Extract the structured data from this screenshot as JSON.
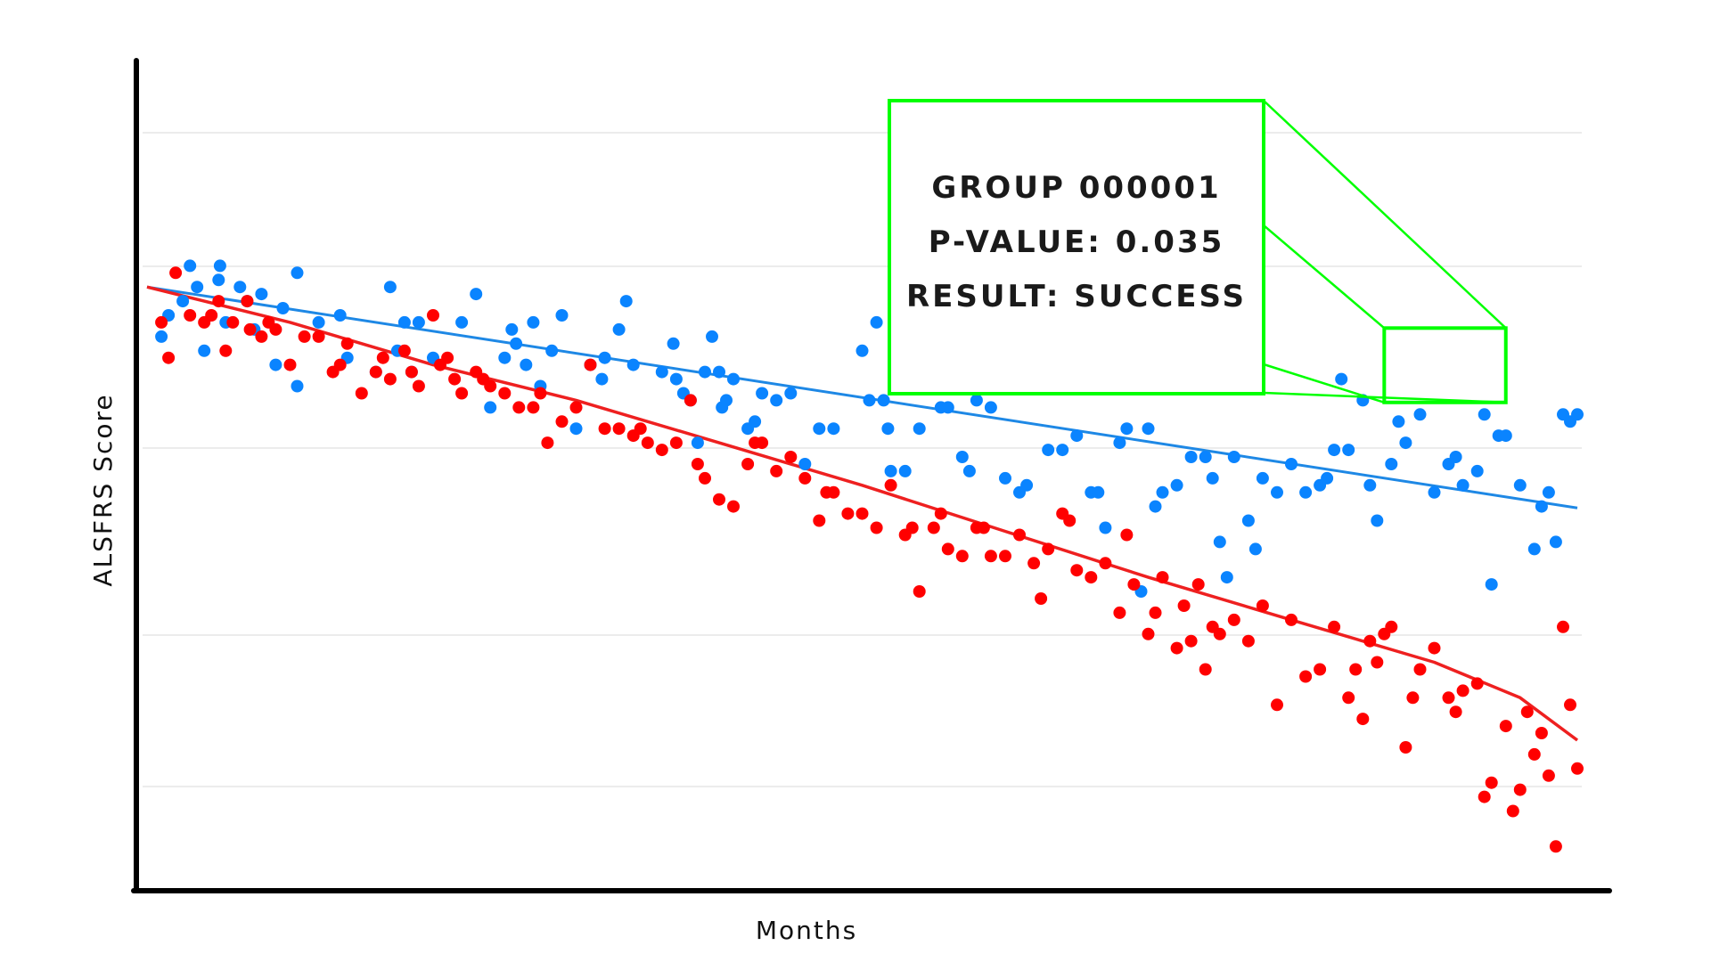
{
  "chart_data": {
    "type": "scatter",
    "title": "",
    "xlabel": "Months",
    "ylabel": "ALSFRS Score",
    "tick_labels_visible": false,
    "grid": "horizontal",
    "xlim": [
      0,
      100
    ],
    "ylim": [
      0,
      100
    ],
    "series": [
      {
        "color": "#0a84ff",
        "trend": "linear",
        "trend_color": "#1e88e5",
        "trend_start": [
          0,
          84.0
        ],
        "trend_end": [
          100,
          52.8
        ],
        "points": [
          [
            1,
            77
          ],
          [
            1.5,
            80
          ],
          [
            2.5,
            82
          ],
          [
            3,
            87
          ],
          [
            3.5,
            84
          ],
          [
            4,
            75
          ],
          [
            5,
            85
          ],
          [
            5.1,
            87
          ],
          [
            5.5,
            79
          ],
          [
            6.5,
            84
          ],
          [
            7,
            82
          ],
          [
            7.5,
            78
          ],
          [
            8,
            83
          ],
          [
            9,
            73
          ],
          [
            9.5,
            81
          ],
          [
            10.5,
            86
          ],
          [
            10.5,
            70
          ],
          [
            12,
            79
          ],
          [
            13.5,
            80
          ],
          [
            14,
            74
          ],
          [
            16,
            72
          ],
          [
            17,
            84
          ],
          [
            17.5,
            75
          ],
          [
            18,
            79
          ],
          [
            18.5,
            72
          ],
          [
            19,
            79
          ],
          [
            20,
            74
          ],
          [
            22,
            79
          ],
          [
            23,
            83
          ],
          [
            24,
            67
          ],
          [
            25,
            74
          ],
          [
            25.5,
            78
          ],
          [
            25.8,
            76
          ],
          [
            26.5,
            73
          ],
          [
            27,
            79
          ],
          [
            27.5,
            70
          ],
          [
            28.3,
            75
          ],
          [
            29,
            80
          ],
          [
            30,
            64
          ],
          [
            31,
            73
          ],
          [
            31.8,
            71
          ],
          [
            32,
            74
          ],
          [
            33,
            78
          ],
          [
            33.5,
            82
          ],
          [
            34,
            73
          ],
          [
            36,
            72
          ],
          [
            36.8,
            76
          ],
          [
            37,
            71
          ],
          [
            37.5,
            69
          ],
          [
            38,
            68
          ],
          [
            38.5,
            62
          ],
          [
            39,
            72
          ],
          [
            39.5,
            77
          ],
          [
            40,
            72
          ],
          [
            40.2,
            67
          ],
          [
            40.5,
            68
          ],
          [
            41,
            71
          ],
          [
            42,
            64
          ],
          [
            42.5,
            65
          ],
          [
            43,
            69
          ],
          [
            44,
            68
          ],
          [
            45,
            69
          ],
          [
            46,
            59
          ],
          [
            47,
            64
          ],
          [
            48,
            64
          ],
          [
            50,
            75
          ],
          [
            50.5,
            68
          ],
          [
            51,
            79
          ],
          [
            51.5,
            68
          ],
          [
            51.8,
            64
          ],
          [
            52,
            58
          ],
          [
            53,
            58
          ],
          [
            54,
            64
          ],
          [
            55.5,
            67
          ],
          [
            56,
            67
          ],
          [
            57,
            60
          ],
          [
            57.5,
            58
          ],
          [
            58,
            68
          ],
          [
            59,
            67
          ],
          [
            60,
            57
          ],
          [
            61,
            55
          ],
          [
            61.5,
            56
          ],
          [
            63,
            61
          ],
          [
            64,
            61
          ],
          [
            65,
            63
          ],
          [
            66,
            55
          ],
          [
            66.5,
            55
          ],
          [
            67,
            50
          ],
          [
            68,
            62
          ],
          [
            68.5,
            64
          ],
          [
            69.5,
            41
          ],
          [
            70,
            64
          ],
          [
            70.5,
            53
          ],
          [
            71,
            55
          ],
          [
            72,
            56
          ],
          [
            73,
            60
          ],
          [
            74,
            60
          ],
          [
            74.5,
            57
          ],
          [
            75,
            48
          ],
          [
            75.5,
            43
          ],
          [
            76,
            60
          ],
          [
            77,
            51
          ],
          [
            77.5,
            47
          ],
          [
            78,
            57
          ],
          [
            79,
            55
          ],
          [
            80,
            59
          ],
          [
            81,
            55
          ],
          [
            82,
            56
          ],
          [
            82.5,
            57
          ],
          [
            83,
            61
          ],
          [
            83.5,
            71
          ],
          [
            84,
            61
          ],
          [
            85,
            68
          ],
          [
            85.5,
            56
          ],
          [
            86,
            51
          ],
          [
            87,
            59
          ],
          [
            87.5,
            65
          ],
          [
            88,
            62
          ],
          [
            89,
            66
          ],
          [
            90,
            55
          ],
          [
            91,
            59
          ],
          [
            91.5,
            60
          ],
          [
            92,
            56
          ],
          [
            93,
            58
          ],
          [
            93.5,
            66
          ],
          [
            94,
            42
          ],
          [
            94.5,
            63
          ],
          [
            95,
            63
          ],
          [
            96,
            56
          ],
          [
            97,
            47
          ],
          [
            97.5,
            53
          ],
          [
            98,
            55
          ],
          [
            98.5,
            48
          ],
          [
            99,
            66
          ],
          [
            99.5,
            65
          ],
          [
            100,
            66
          ]
        ]
      },
      {
        "color": "#ff0000",
        "trend": "moving-average",
        "trend_color": "#ee2020",
        "trend_line": [
          [
            0,
            84.0
          ],
          [
            10,
            79.0
          ],
          [
            20,
            73.0
          ],
          [
            30,
            68.0
          ],
          [
            40,
            62.0
          ],
          [
            50,
            56.0
          ],
          [
            60,
            49.5
          ],
          [
            70,
            43.0
          ],
          [
            80,
            37.0
          ],
          [
            90,
            31.0
          ],
          [
            96,
            26.0
          ],
          [
            100,
            20.0
          ]
        ],
        "points": [
          [
            1,
            79
          ],
          [
            1.5,
            74
          ],
          [
            2,
            86
          ],
          [
            3,
            80
          ],
          [
            4,
            79
          ],
          [
            4.5,
            80
          ],
          [
            5,
            82
          ],
          [
            5.5,
            75
          ],
          [
            6,
            79
          ],
          [
            7,
            82
          ],
          [
            7.2,
            78
          ],
          [
            8,
            77
          ],
          [
            8.5,
            79
          ],
          [
            9,
            78
          ],
          [
            10,
            73
          ],
          [
            11,
            77
          ],
          [
            12,
            77
          ],
          [
            13,
            72
          ],
          [
            13.5,
            73
          ],
          [
            14,
            76
          ],
          [
            15,
            69
          ],
          [
            16,
            72
          ],
          [
            16.5,
            74
          ],
          [
            17,
            71
          ],
          [
            18,
            75
          ],
          [
            18.5,
            72
          ],
          [
            19,
            70
          ],
          [
            20,
            80
          ],
          [
            20.5,
            73
          ],
          [
            21,
            74
          ],
          [
            21.5,
            71
          ],
          [
            22,
            69
          ],
          [
            23,
            72
          ],
          [
            23.5,
            71
          ],
          [
            24,
            70
          ],
          [
            25,
            69
          ],
          [
            26,
            67
          ],
          [
            27,
            67
          ],
          [
            27.5,
            69
          ],
          [
            28,
            62
          ],
          [
            29,
            65
          ],
          [
            30,
            67
          ],
          [
            31,
            73
          ],
          [
            32,
            64
          ],
          [
            33,
            64
          ],
          [
            34,
            63
          ],
          [
            34.5,
            64
          ],
          [
            35,
            62
          ],
          [
            36,
            61
          ],
          [
            37,
            62
          ],
          [
            38,
            68
          ],
          [
            38.5,
            59
          ],
          [
            39,
            57
          ],
          [
            40,
            54
          ],
          [
            41,
            53
          ],
          [
            42,
            59
          ],
          [
            42.5,
            62
          ],
          [
            43,
            62
          ],
          [
            44,
            58
          ],
          [
            45,
            60
          ],
          [
            46,
            57
          ],
          [
            47,
            51
          ],
          [
            47.5,
            55
          ],
          [
            48,
            55
          ],
          [
            49,
            52
          ],
          [
            50,
            52
          ],
          [
            51,
            50
          ],
          [
            52,
            56
          ],
          [
            53,
            49
          ],
          [
            53.5,
            50
          ],
          [
            54,
            41
          ],
          [
            55,
            50
          ],
          [
            55.5,
            52
          ],
          [
            56,
            47
          ],
          [
            57,
            46
          ],
          [
            58,
            50
          ],
          [
            58.5,
            50
          ],
          [
            59,
            46
          ],
          [
            60,
            46
          ],
          [
            61,
            49
          ],
          [
            62,
            45
          ],
          [
            62.5,
            40
          ],
          [
            63,
            47
          ],
          [
            64,
            52
          ],
          [
            64.5,
            51
          ],
          [
            65,
            44
          ],
          [
            66,
            43
          ],
          [
            67,
            45
          ],
          [
            68,
            38
          ],
          [
            68.5,
            49
          ],
          [
            69,
            42
          ],
          [
            70,
            35
          ],
          [
            70.5,
            38
          ],
          [
            71,
            43
          ],
          [
            72,
            33
          ],
          [
            72.5,
            39
          ],
          [
            73,
            34
          ],
          [
            73.5,
            42
          ],
          [
            74,
            30
          ],
          [
            74.5,
            36
          ],
          [
            75,
            35
          ],
          [
            76,
            37
          ],
          [
            77,
            34
          ],
          [
            78,
            39
          ],
          [
            79,
            25
          ],
          [
            80,
            37
          ],
          [
            81,
            29
          ],
          [
            82,
            30
          ],
          [
            83,
            36
          ],
          [
            84,
            26
          ],
          [
            84.5,
            30
          ],
          [
            85,
            23
          ],
          [
            85.5,
            34
          ],
          [
            86,
            31
          ],
          [
            86.5,
            35
          ],
          [
            87,
            36
          ],
          [
            88,
            19
          ],
          [
            88.5,
            26
          ],
          [
            89,
            30
          ],
          [
            90,
            33
          ],
          [
            91,
            26
          ],
          [
            91.5,
            24
          ],
          [
            92,
            27
          ],
          [
            93,
            28
          ],
          [
            93.5,
            12
          ],
          [
            94,
            14
          ],
          [
            95,
            22
          ],
          [
            95.5,
            10
          ],
          [
            96,
            13
          ],
          [
            96.5,
            24
          ],
          [
            97,
            18
          ],
          [
            97.5,
            21
          ],
          [
            98,
            15
          ],
          [
            98.5,
            5
          ],
          [
            99,
            36
          ],
          [
            99.5,
            25
          ],
          [
            100,
            16
          ]
        ]
      }
    ],
    "inset": {
      "color": "#00ff00",
      "dot_color": "#b8dcff",
      "zoom_region": [
        86.5,
        67.7,
        95.0,
        78.2
      ],
      "lines": [
        "GROUP 000001",
        "P-VALUE: 0.035",
        "RESULT: SUCCESS"
      ]
    }
  }
}
